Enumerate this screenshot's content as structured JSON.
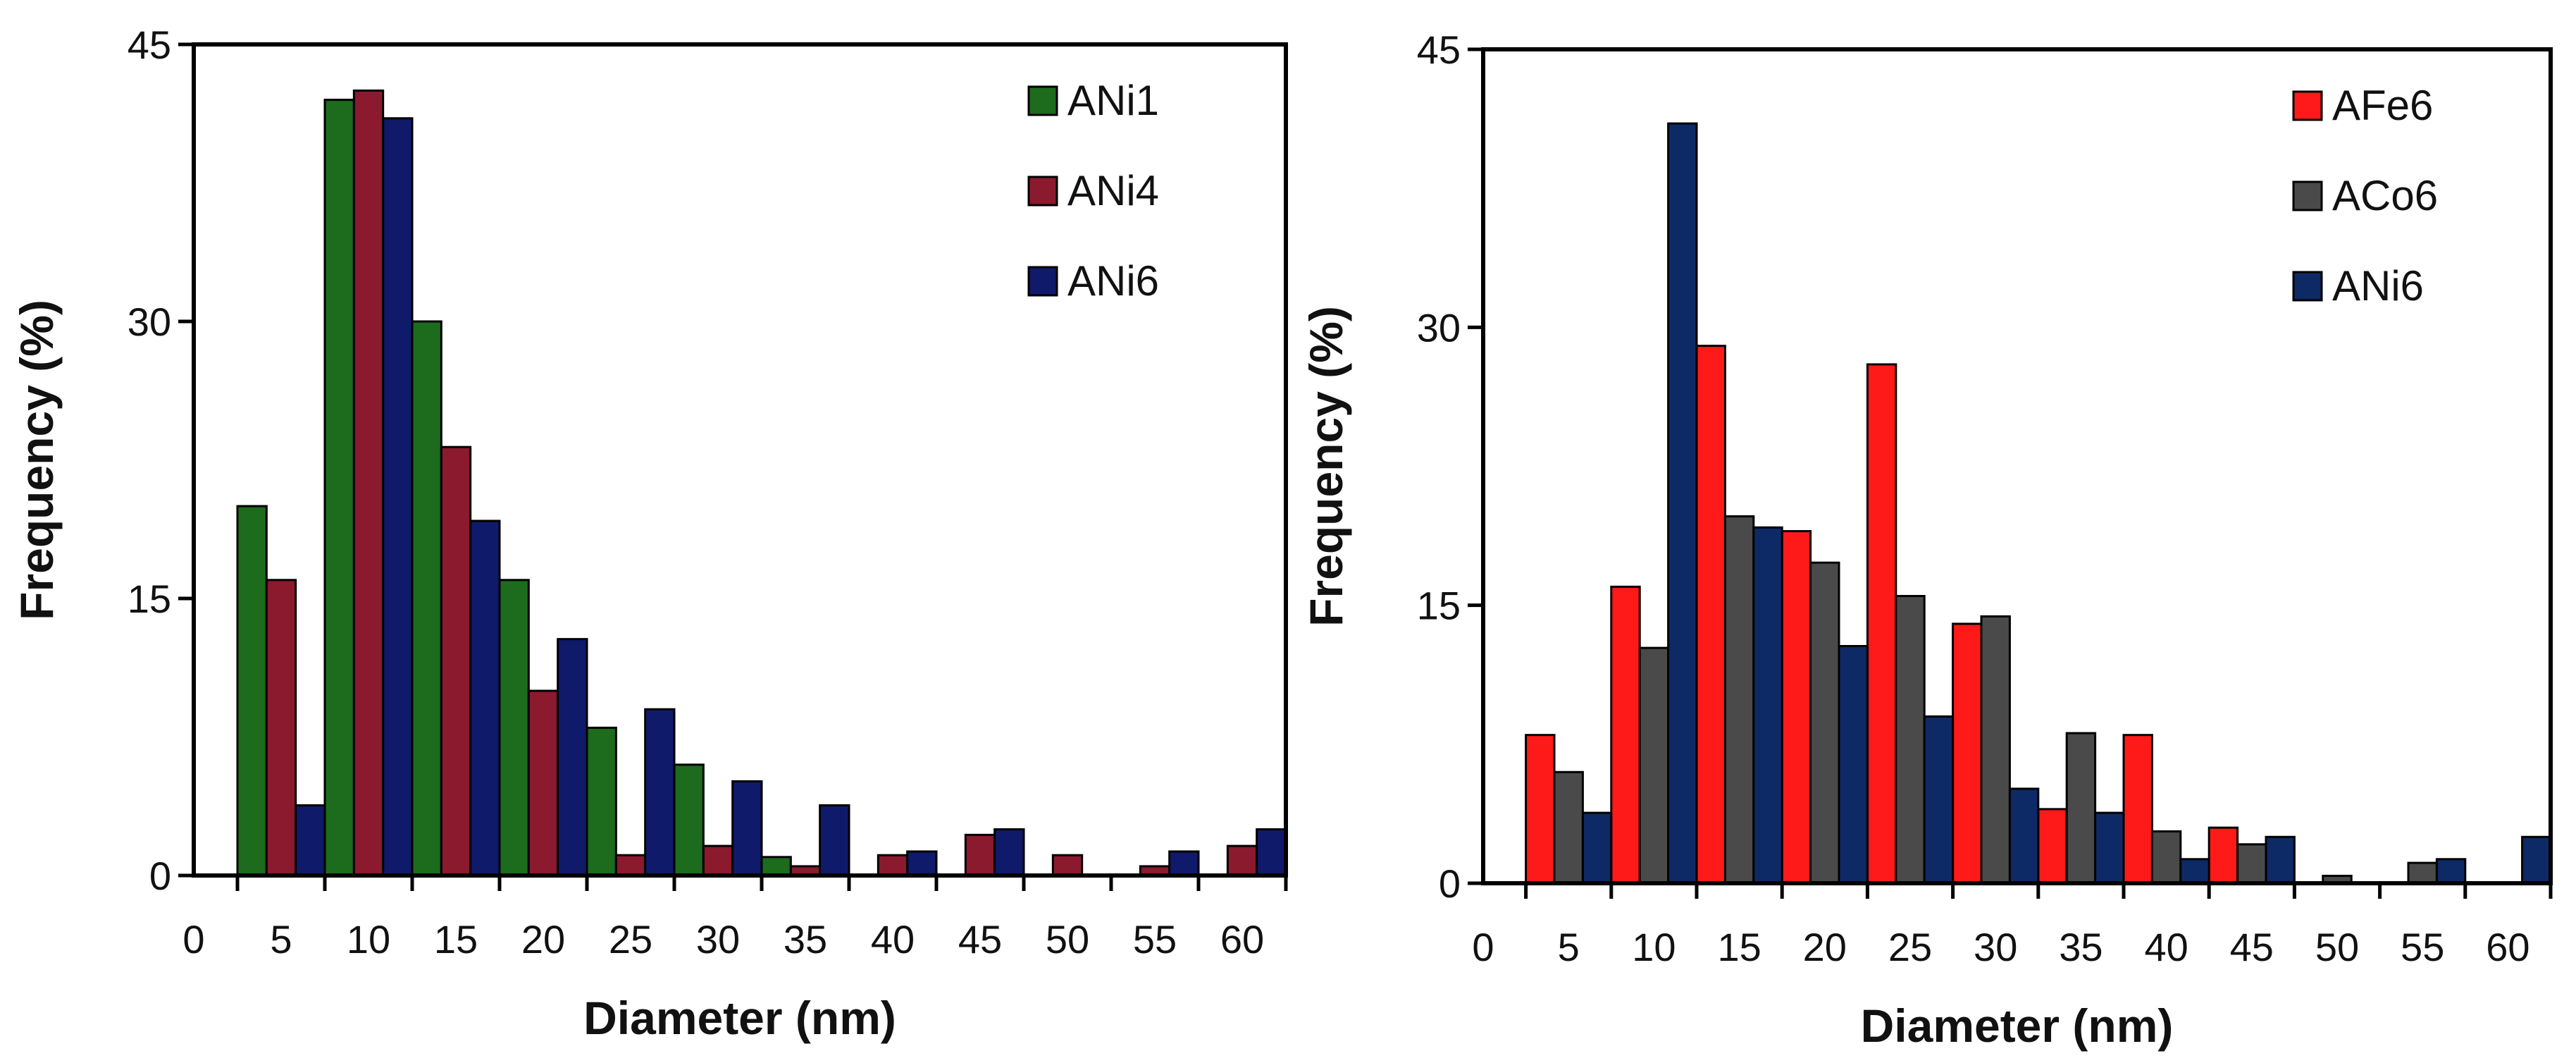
{
  "chart_data": [
    {
      "type": "bar",
      "xlabel": "Diameter (nm)",
      "ylabel": "Frequency (%)",
      "ylim": [
        0,
        45
      ],
      "yticks": [
        "0",
        "15",
        "30",
        "45"
      ],
      "categories": [
        "0",
        "5",
        "10",
        "15",
        "20",
        "25",
        "30",
        "35",
        "40",
        "45",
        "50",
        "55",
        "60"
      ],
      "legend_position": "top-right",
      "series": [
        {
          "name": "ANi1",
          "color": "#1d6b1d",
          "values": [
            0,
            20,
            42,
            30,
            16,
            8,
            6,
            1,
            0,
            0,
            0,
            0,
            0
          ]
        },
        {
          "name": "ANi4",
          "color": "#8b1a2e",
          "values": [
            0,
            16,
            42.5,
            23.2,
            10,
            1.1,
            1.6,
            0.5,
            1.1,
            2.2,
            1.1,
            0.5,
            1.6
          ]
        },
        {
          "name": "ANi6",
          "color": "#101a6b",
          "values": [
            0,
            3.8,
            41,
            19.2,
            12.8,
            9,
            5.1,
            3.8,
            1.3,
            2.5,
            0,
            1.3,
            2.5
          ]
        }
      ]
    },
    {
      "type": "bar",
      "xlabel": "Diameter (nm)",
      "ylabel": "Frequency (%)",
      "ylim": [
        0,
        45
      ],
      "yticks": [
        "0",
        "15",
        "30",
        "45"
      ],
      "categories": [
        "0",
        "5",
        "10",
        "15",
        "20",
        "25",
        "30",
        "35",
        "40",
        "45",
        "50",
        "55",
        "60"
      ],
      "legend_position": "top-right",
      "series": [
        {
          "name": "AFe6",
          "color": "#ff1a1a",
          "values": [
            0,
            8,
            16,
            29,
            19,
            28,
            14,
            4,
            8,
            3,
            0,
            0,
            0
          ]
        },
        {
          "name": "ACo6",
          "color": "#4a4a4a",
          "values": [
            0,
            6,
            12.7,
            19.8,
            17.3,
            15.5,
            14.4,
            8.1,
            2.8,
            2.1,
            0.4,
            1.1,
            0
          ]
        },
        {
          "name": "ANi6",
          "color": "#0d2a66",
          "values": [
            0,
            3.8,
            41,
            19.2,
            12.8,
            9,
            5.1,
            3.8,
            1.3,
            2.5,
            0,
            1.3,
            2.5
          ]
        }
      ]
    }
  ]
}
